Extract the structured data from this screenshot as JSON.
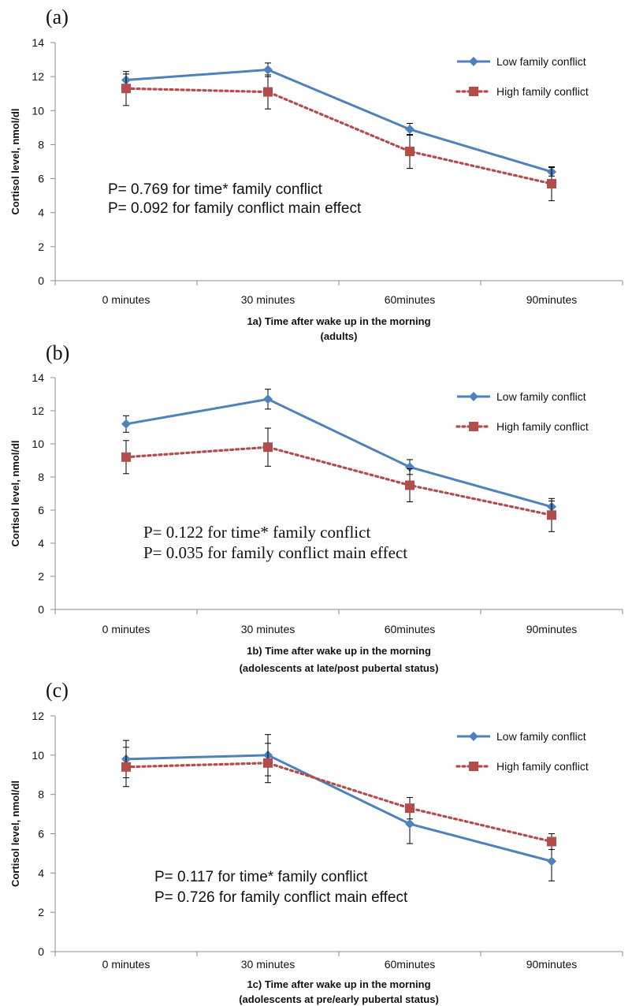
{
  "colors": {
    "low": "#4f81bd",
    "high": "#b34d4b",
    "axis": "#8c8c8c"
  },
  "legend": {
    "low": "Low family conflict",
    "high": "High family conflict"
  },
  "chart_data": [
    {
      "type": "line",
      "panel_label": "(a)",
      "categories": [
        "0 minutes",
        "30 minutes",
        "60minutes",
        "90minutes"
      ],
      "ylabel": "Cortisol level, nmol/dl",
      "xlabel": [
        "1a) Time after wake up in the morning",
        "(adults)"
      ],
      "ylim": [
        0,
        14
      ],
      "yticks": [
        0,
        2,
        4,
        6,
        8,
        10,
        12,
        14
      ],
      "annotations": [
        "P= 0.769 for time* family conflict",
        "P= 0.092 for family conflict main effect"
      ],
      "legend_position": "top-right",
      "series": [
        {
          "name": "Low family conflict",
          "values": [
            11.8,
            12.4,
            8.9,
            6.4
          ],
          "errors": [
            0.35,
            0.4,
            0.35,
            0.25
          ]
        },
        {
          "name": "High family conflict",
          "values": [
            11.3,
            11.1,
            7.6,
            5.7
          ],
          "errors": [
            1.0,
            1.0,
            1.0,
            1.0
          ]
        }
      ]
    },
    {
      "type": "line",
      "panel_label": "(b)",
      "categories": [
        "0 minutes",
        "30 minutes",
        "60minutes",
        "90minutes"
      ],
      "ylabel": "Cortisol level, nmol/dl",
      "xlabel": [
        "1b) Time after wake up in the morning",
        "(adolescents at late/post pubertal status)"
      ],
      "ylim": [
        0,
        14
      ],
      "yticks": [
        0,
        2,
        4,
        6,
        8,
        10,
        12,
        14
      ],
      "annotations": [
        "P= 0.122 for time* family conflict",
        "P= 0.035 for family conflict main effect"
      ],
      "legend_position": "top-right",
      "series": [
        {
          "name": "Low family conflict",
          "values": [
            11.2,
            12.7,
            8.6,
            6.2
          ],
          "errors": [
            0.5,
            0.6,
            0.45,
            0.35
          ]
        },
        {
          "name": "High family conflict",
          "values": [
            9.2,
            9.8,
            7.5,
            5.7
          ],
          "errors": [
            1.0,
            1.15,
            1.0,
            1.0
          ]
        }
      ]
    },
    {
      "type": "line",
      "panel_label": "(c)",
      "categories": [
        "0 minutes",
        "30 minutes",
        "60minutes",
        "90minutes"
      ],
      "ylabel": "Cortisol level, nmol/dl",
      "xlabel": [
        "1c) Time after wake up in the morning",
        "(adolescents at pre/early pubertal status)"
      ],
      "ylim": [
        0,
        12
      ],
      "yticks": [
        0,
        2,
        4,
        6,
        8,
        10,
        12
      ],
      "annotations": [
        "P= 0.117 for time* family conflict",
        "P= 0.726  for family conflict main effect"
      ],
      "legend_position": "top-right",
      "series": [
        {
          "name": "Low family conflict",
          "values": [
            9.8,
            10.0,
            6.5,
            4.6
          ],
          "errors": [
            0.95,
            1.05,
            1.0,
            1.0
          ]
        },
        {
          "name": "High family conflict",
          "values": [
            9.4,
            9.6,
            7.3,
            5.6
          ],
          "errors": [
            1.0,
            1.0,
            0.55,
            0.4
          ]
        }
      ]
    }
  ]
}
